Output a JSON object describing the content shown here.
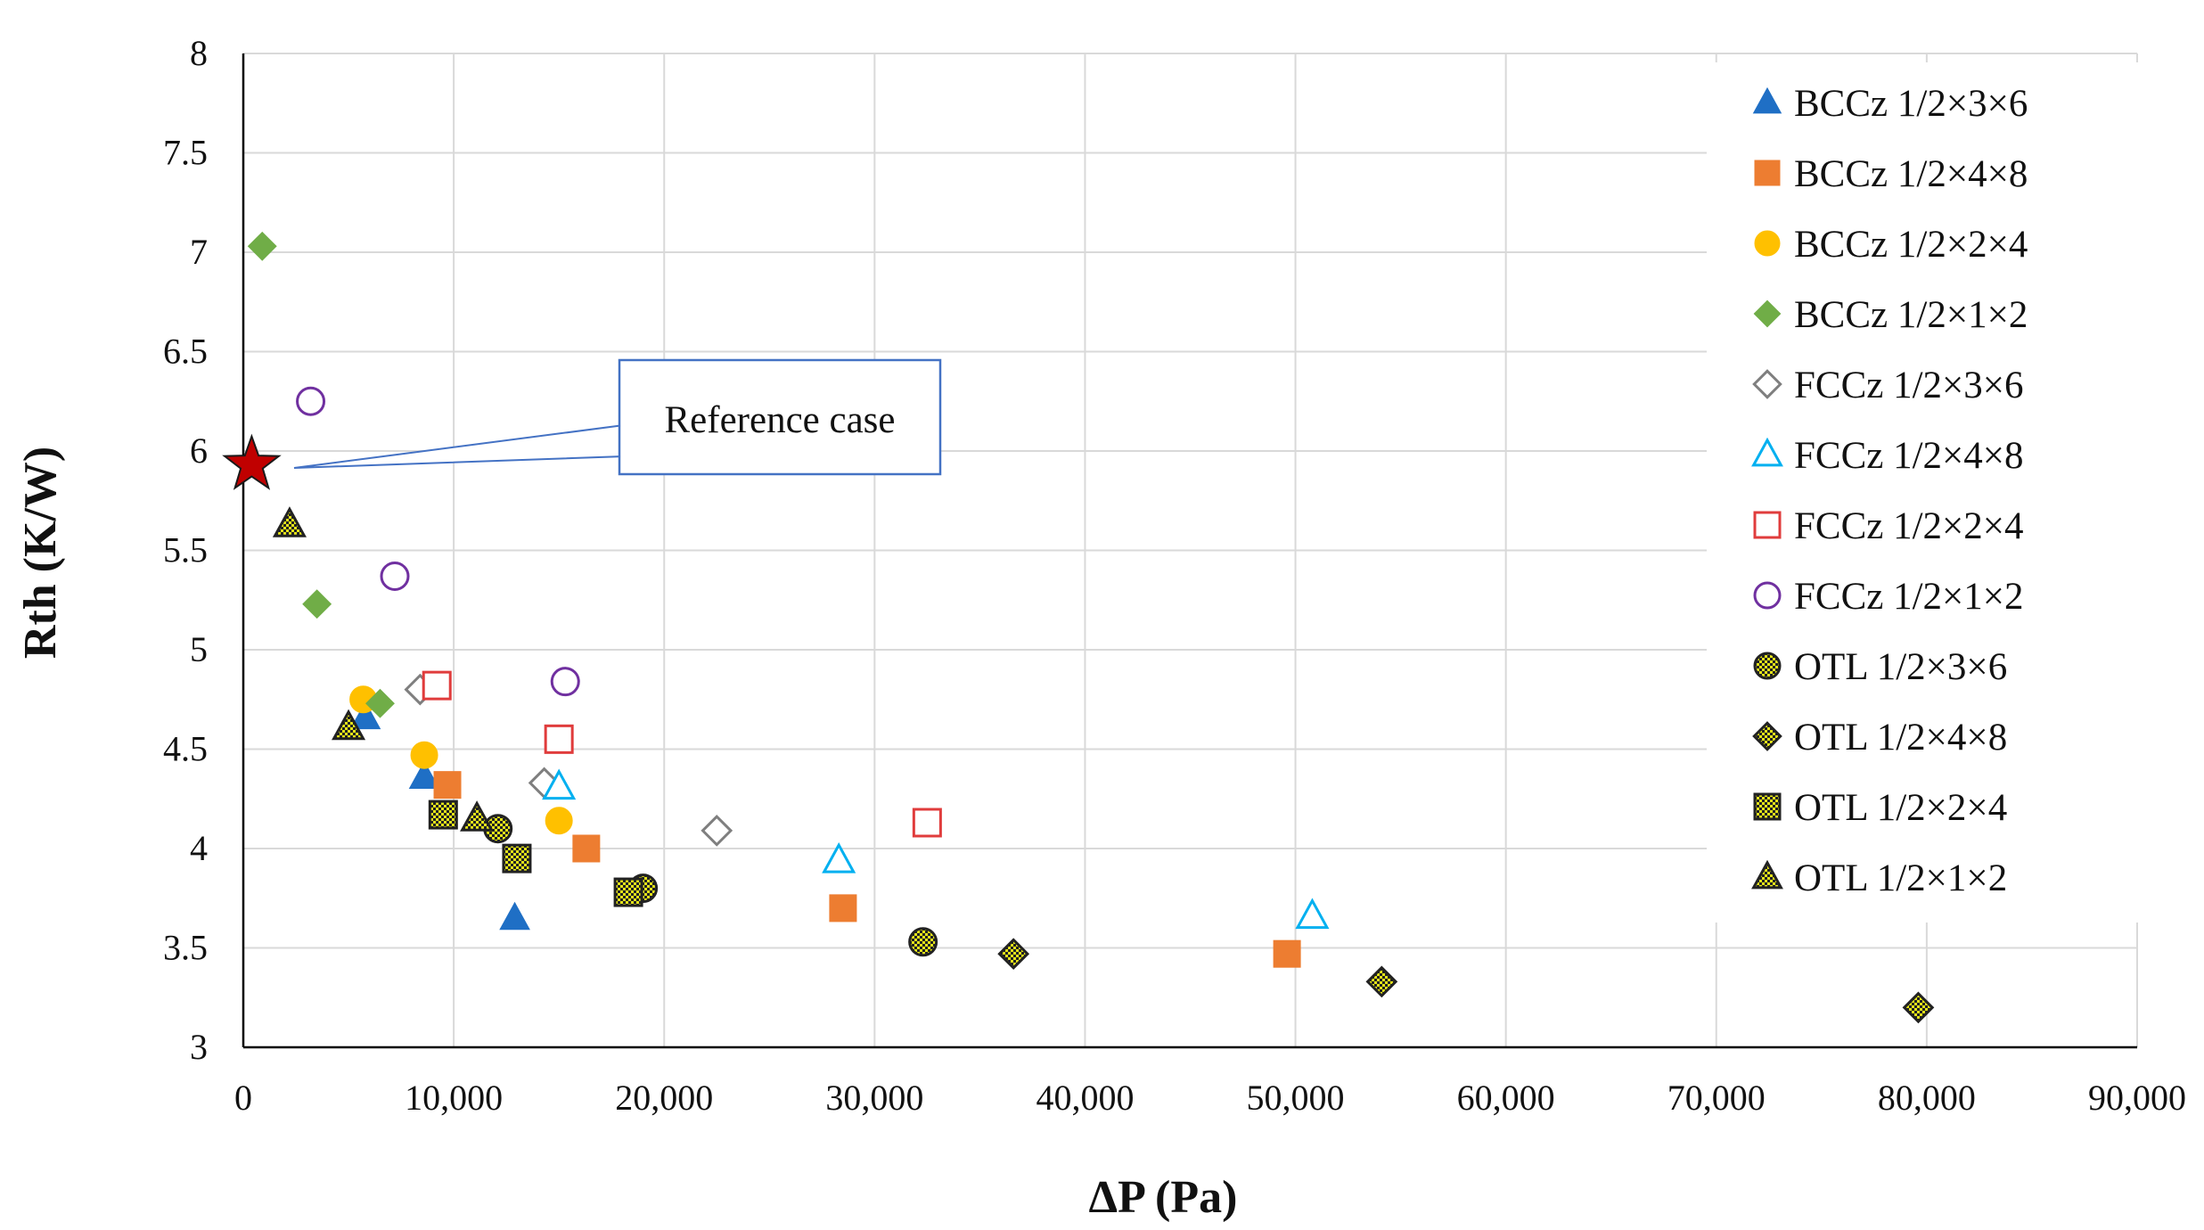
{
  "chart_data": {
    "type": "scatter",
    "title": "",
    "xlabel": "ΔP (Pa)",
    "ylabel": "Rth (K/W)",
    "xlim": [
      0,
      90000
    ],
    "ylim": [
      3,
      8
    ],
    "x_ticks": [
      0,
      10000,
      20000,
      30000,
      40000,
      50000,
      60000,
      70000,
      80000,
      90000
    ],
    "x_tick_labels": [
      "0",
      "10,000",
      "20,000",
      "30,000",
      "40,000",
      "50,000",
      "60,000",
      "70,000",
      "80,000",
      "90,000"
    ],
    "y_ticks": [
      3,
      3.5,
      4,
      4.5,
      5,
      5.5,
      6,
      6.5,
      7,
      7.5,
      8
    ],
    "y_tick_labels": [
      "3",
      "3.5",
      "4",
      "4.5",
      "5",
      "5.5",
      "6",
      "6.5",
      "7",
      "7.5",
      "8"
    ],
    "grid": true,
    "legend_position": "right",
    "series": [
      {
        "name": "BCCz 1/2×3×6",
        "marker": "triangle-filled",
        "color": "#1f6fc5",
        "points": [
          [
            5800,
            4.66
          ],
          [
            8600,
            4.36
          ],
          [
            12900,
            3.65
          ]
        ]
      },
      {
        "name": "BCCz 1/2×4×8",
        "marker": "square-filled",
        "color": "#ed7d31",
        "points": [
          [
            9700,
            4.32
          ],
          [
            16300,
            4.0
          ],
          [
            28500,
            3.7
          ],
          [
            49600,
            3.47
          ]
        ]
      },
      {
        "name": "BCCz 1/2×2×4",
        "marker": "circle-filled",
        "color": "#ffc000",
        "points": [
          [
            5700,
            4.75
          ],
          [
            8600,
            4.47
          ],
          [
            15000,
            4.14
          ]
        ]
      },
      {
        "name": "BCCz 1/2×1×2",
        "marker": "diamond-filled",
        "color": "#70ad47",
        "points": [
          [
            900,
            7.03
          ],
          [
            3500,
            5.23
          ],
          [
            6500,
            4.73
          ]
        ]
      },
      {
        "name": "FCCz 1/2×3×6",
        "marker": "diamond-open",
        "color": "#7f7f7f",
        "points": [
          [
            8400,
            4.8
          ],
          [
            14300,
            4.33
          ],
          [
            22500,
            4.09
          ]
        ]
      },
      {
        "name": "FCCz 1/2×4×8",
        "marker": "triangle-open",
        "color": "#00b0f0",
        "points": [
          [
            15000,
            4.31
          ],
          [
            28300,
            3.94
          ],
          [
            50800,
            3.66
          ]
        ]
      },
      {
        "name": "FCCz 1/2×2×4",
        "marker": "square-open",
        "color": "#e03c3c",
        "points": [
          [
            9200,
            4.82
          ],
          [
            15000,
            4.55
          ],
          [
            32500,
            4.13
          ]
        ]
      },
      {
        "name": "FCCz 1/2×1×2",
        "marker": "circle-open",
        "color": "#7030a0",
        "points": [
          [
            3200,
            6.25
          ],
          [
            7200,
            5.37
          ],
          [
            15300,
            4.84
          ]
        ]
      },
      {
        "name": "OTL 1/2×3×6",
        "marker": "circle-hatched",
        "color": "#e5e51a",
        "points": [
          [
            12100,
            4.1
          ],
          [
            19000,
            3.8
          ],
          [
            32300,
            3.53
          ]
        ]
      },
      {
        "name": "OTL 1/2×4×8",
        "marker": "diamond-hatched",
        "color": "#e5e51a",
        "points": [
          [
            36600,
            3.47
          ],
          [
            54100,
            3.33
          ],
          [
            79600,
            3.2
          ]
        ]
      },
      {
        "name": "OTL 1/2×2×4",
        "marker": "square-hatched",
        "color": "#e5e51a",
        "points": [
          [
            9500,
            4.17
          ],
          [
            13000,
            3.95
          ],
          [
            18300,
            3.78
          ]
        ]
      },
      {
        "name": "OTL 1/2×1×2",
        "marker": "triangle-hatched",
        "color": "#e5e51a",
        "points": [
          [
            2200,
            5.63
          ],
          [
            5000,
            4.61
          ],
          [
            11100,
            4.15
          ]
        ]
      }
    ],
    "reference": {
      "name": "Reference case",
      "marker": "star",
      "color": "#c00000",
      "point": [
        400,
        5.93
      ]
    },
    "annotations": [
      {
        "text": "Reference case",
        "points_to": [
          400,
          5.93
        ]
      }
    ]
  }
}
